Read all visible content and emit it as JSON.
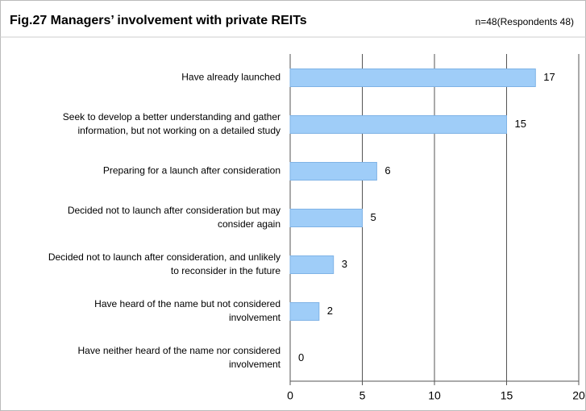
{
  "chart_data": {
    "type": "bar",
    "orientation": "horizontal",
    "title": "Fig.27  Managers’ involvement with private REITs",
    "subtitle": "n=48(Respondents 48)",
    "categories": [
      "Have already launched",
      "Seek to develop a better understanding and gather\ninformation, but not working on a detailed study",
      "Preparing for a launch after consideration",
      "Decided not to launch after consideration but may\nconsider again",
      "Decided not to launch after consideration, and unlikely\nto reconsider in the future",
      "Have heard of the name but not considered\ninvolvement",
      "Have neither heard of the name nor considered\ninvolvement"
    ],
    "values": [
      17,
      15,
      6,
      5,
      3,
      2,
      0
    ],
    "color": "#9fcdf8",
    "xlim": [
      0,
      20
    ],
    "xticks": [
      0,
      5,
      10,
      15,
      20
    ],
    "grid": true
  }
}
